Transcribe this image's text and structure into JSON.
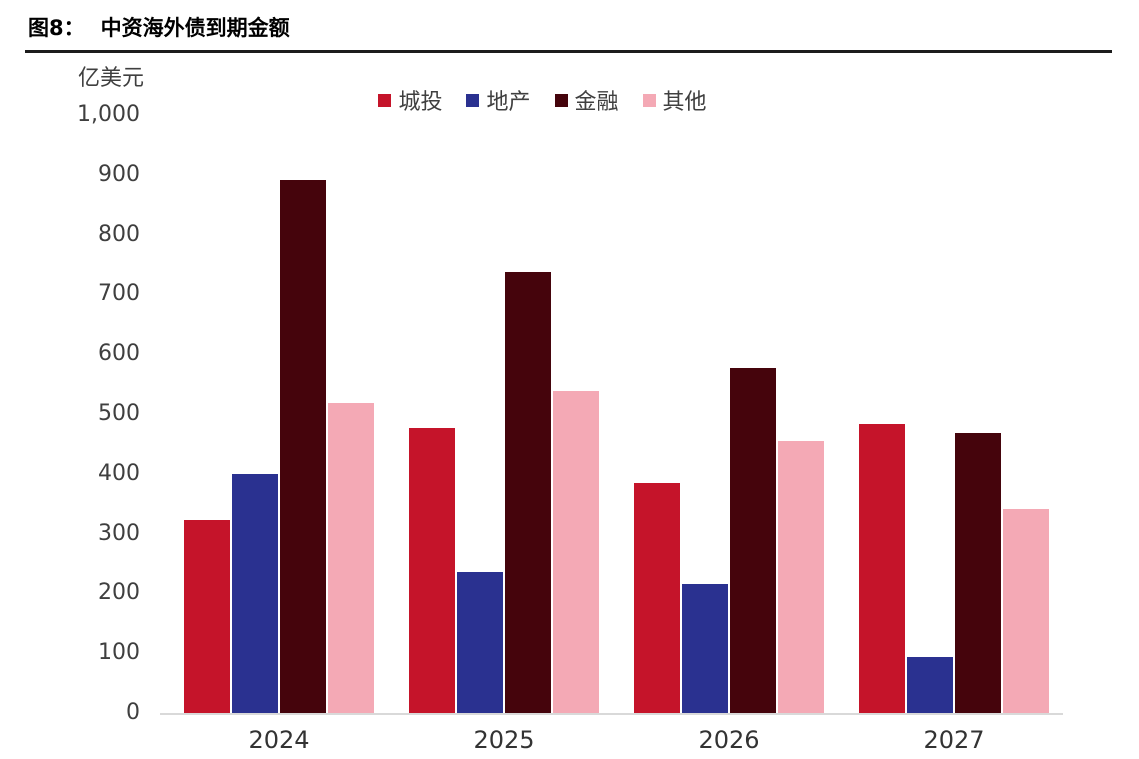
{
  "figure": {
    "label": "图8：",
    "title": "中资海外债到期金额"
  },
  "chart_data": {
    "type": "bar",
    "title": "中资海外债到期金额",
    "unit_label": "亿美元",
    "categories": [
      "2024",
      "2025",
      "2026",
      "2027"
    ],
    "series": [
      {
        "name": "城投",
        "color": "#C5142A",
        "values": [
          322,
          477,
          384,
          483
        ]
      },
      {
        "name": "地产",
        "color": "#2A3190",
        "values": [
          400,
          236,
          216,
          94
        ]
      },
      {
        "name": "金融",
        "color": "#45040C",
        "values": [
          892,
          738,
          577,
          469
        ]
      },
      {
        "name": "其他",
        "color": "#F4A9B5",
        "values": [
          518,
          538,
          455,
          341
        ]
      }
    ],
    "ylim": [
      0,
      1000
    ],
    "ytick_labels": [
      "1,000",
      "900",
      "800",
      "700",
      "600",
      "500",
      "400",
      "300",
      "200",
      "100",
      "0"
    ],
    "grid": false,
    "legend_position": "top-center",
    "axis_line_color": "#D9D9D9",
    "tick_text_color": "#3F3F3F"
  }
}
